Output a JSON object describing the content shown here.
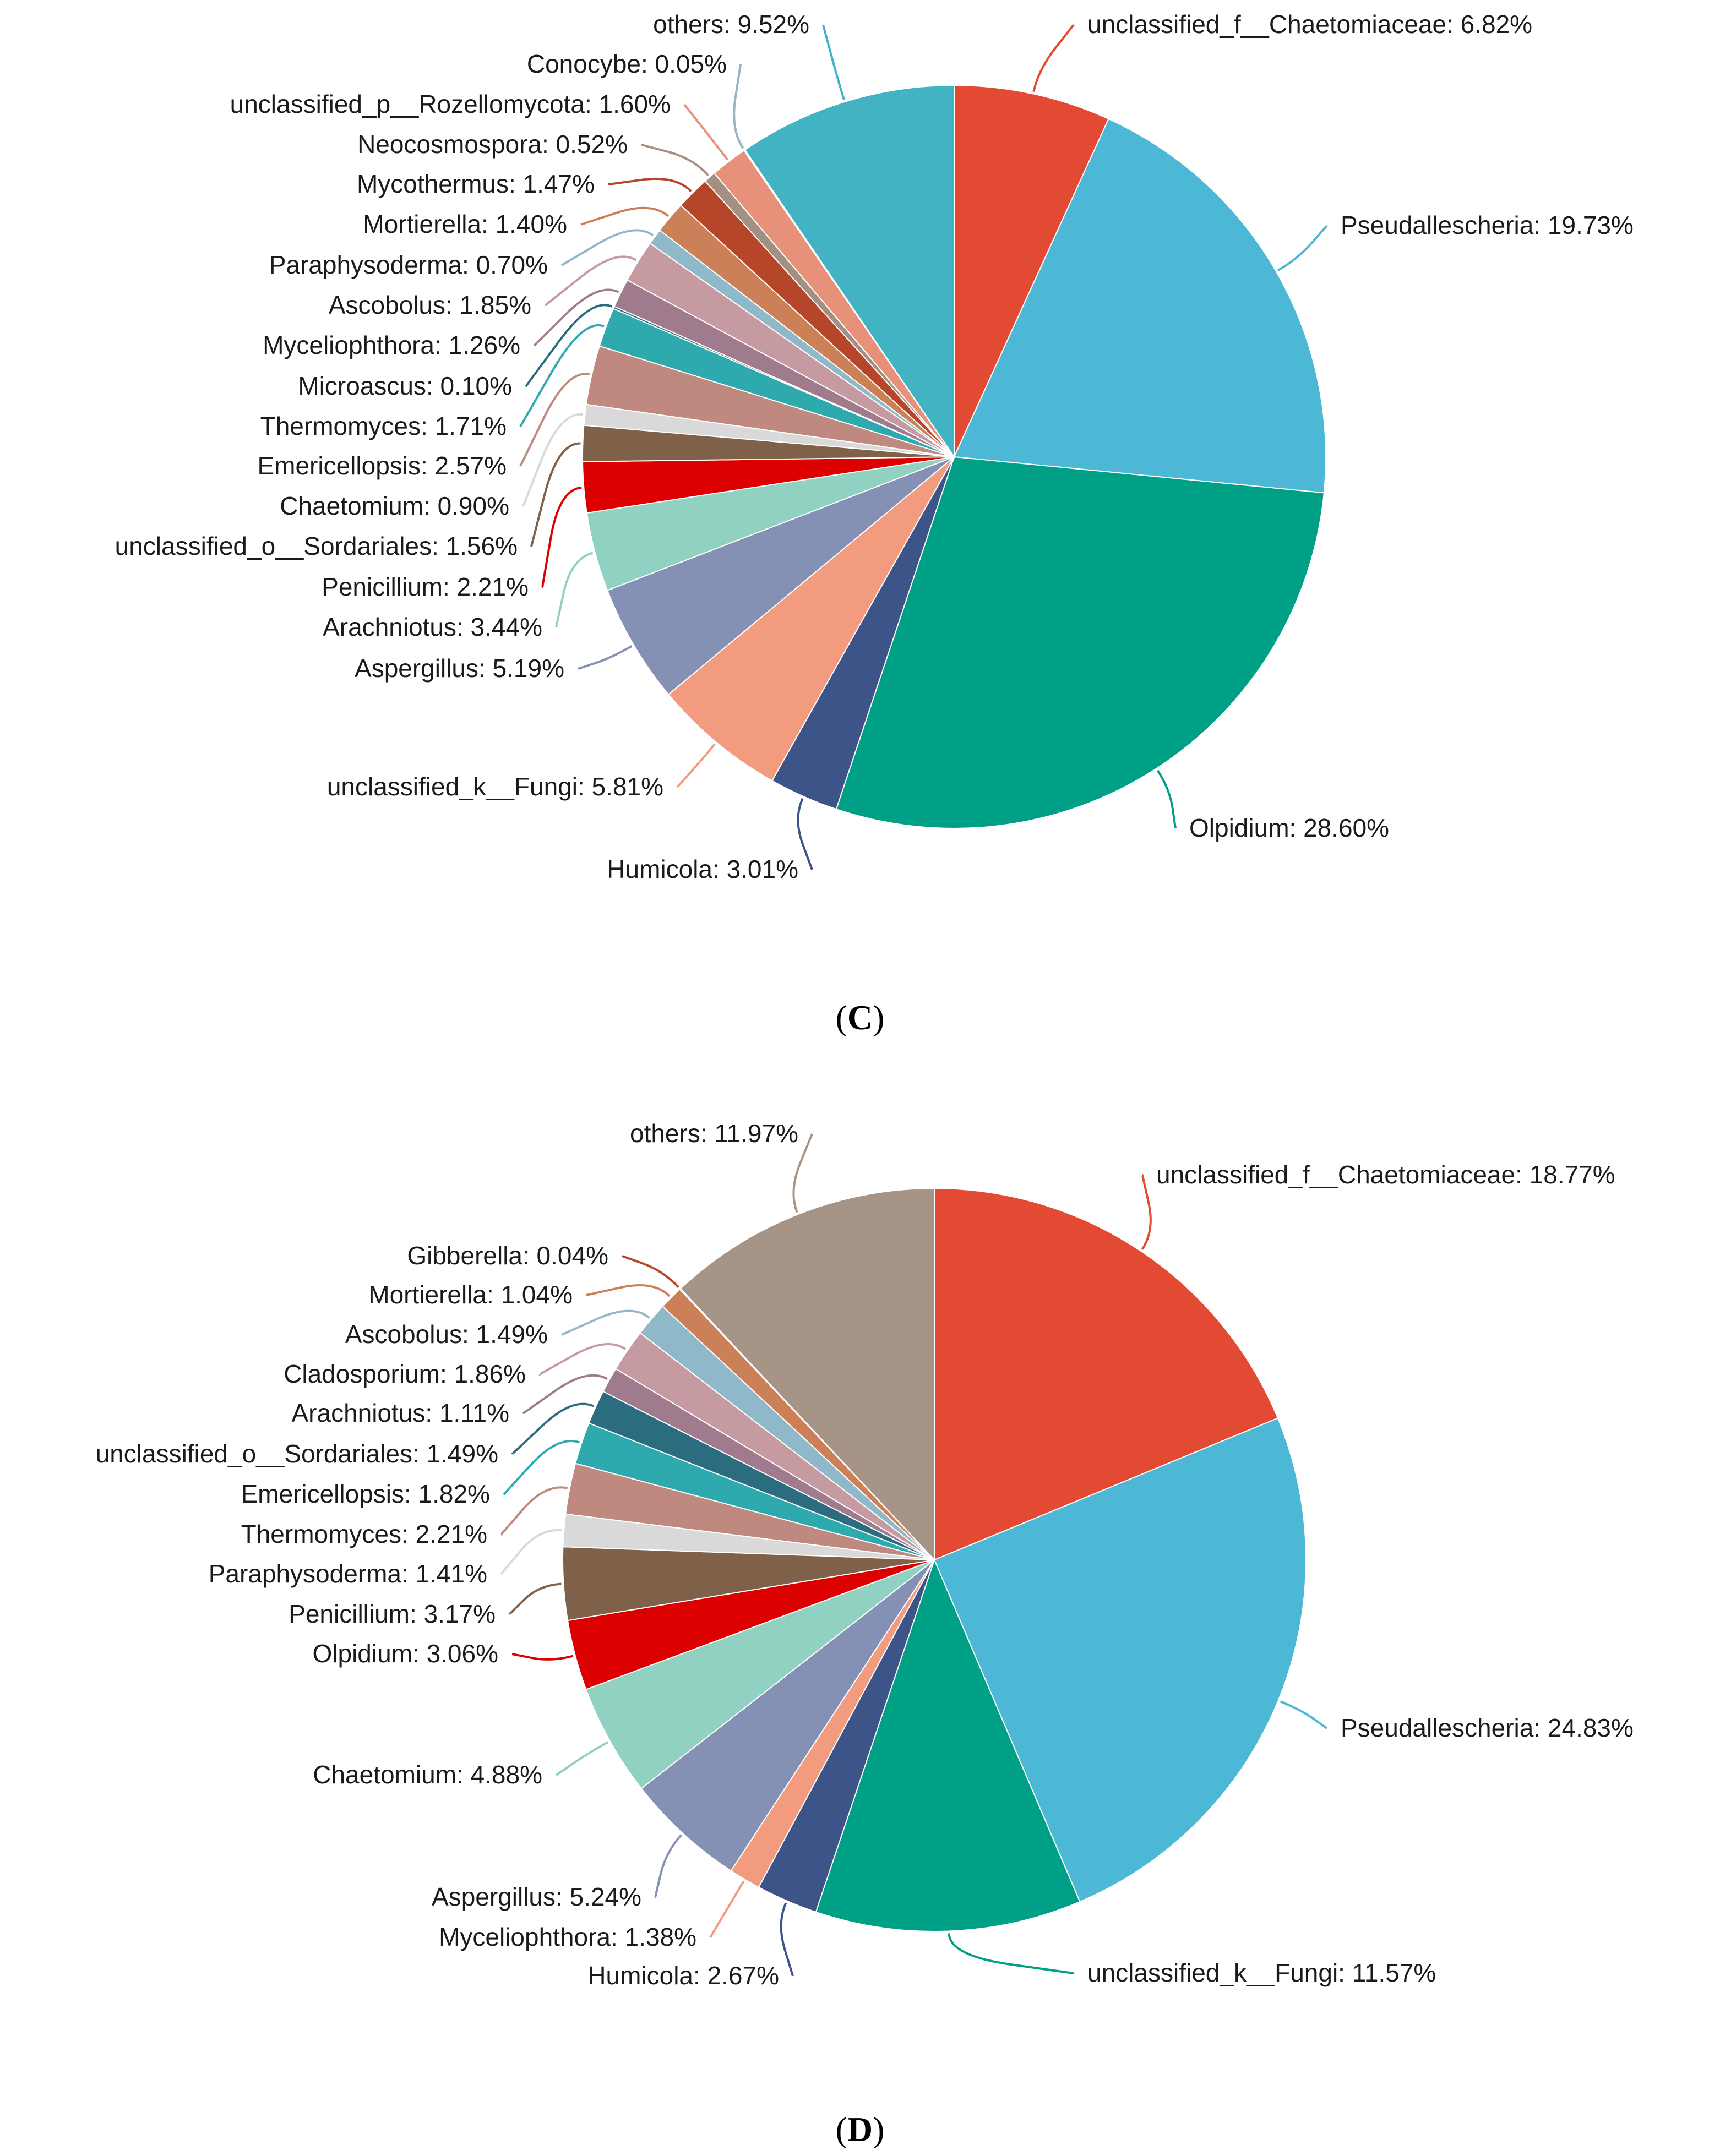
{
  "chart_data": [
    {
      "type": "pie",
      "panel": "C",
      "start_angle_deg": 0,
      "direction": "clockwise",
      "slices": [
        {
          "name": "unclassified_f__Chaetomiaceae",
          "value": 6.82,
          "label": "unclassified_f__Chaetomiaceae: 6.82%",
          "color": "#e34a33"
        },
        {
          "name": "Pseudallescheria",
          "value": 19.73,
          "label": "Pseudallescheria: 19.73%",
          "color": "#4db8d5"
        },
        {
          "name": "Olpidium",
          "value": 28.6,
          "label": "Olpidium: 28.60%",
          "color": "#00a087"
        },
        {
          "name": "Humicola",
          "value": 3.01,
          "label": "Humicola: 3.01%",
          "color": "#3c5488"
        },
        {
          "name": "unclassified_k__Fungi",
          "value": 5.81,
          "label": "unclassified_k__Fungi: 5.81%",
          "color": "#f39b7f"
        },
        {
          "name": "Aspergillus",
          "value": 5.19,
          "label": "Aspergillus: 5.19%",
          "color": "#8491b4"
        },
        {
          "name": "Arachniotus",
          "value": 3.44,
          "label": "Arachniotus: 3.44%",
          "color": "#91d1c2"
        },
        {
          "name": "Penicillium",
          "value": 2.21,
          "label": "Penicillium: 2.21%",
          "color": "#dc0000"
        },
        {
          "name": "unclassified_o__Sordariales",
          "value": 1.56,
          "label": "unclassified_o__Sordariales: 1.56%",
          "color": "#7e6148"
        },
        {
          "name": "Chaetomium",
          "value": 0.9,
          "label": "Chaetomium: 0.90%",
          "color": "#d9d9d9"
        },
        {
          "name": "Emericellopsis",
          "value": 2.57,
          "label": "Emericellopsis: 2.57%",
          "color": "#c0897f"
        },
        {
          "name": "Thermomyces",
          "value": 1.71,
          "label": "Thermomyces: 1.71%",
          "color": "#2eaaae"
        },
        {
          "name": "Microascus",
          "value": 0.1,
          "label": "Microascus: 0.10%",
          "color": "#2b6d7e"
        },
        {
          "name": "Myceliophthora",
          "value": 1.26,
          "label": "Myceliophthora: 1.26%",
          "color": "#a07a8d"
        },
        {
          "name": "Ascobolus",
          "value": 1.85,
          "label": "Ascobolus: 1.85%",
          "color": "#c59aa0"
        },
        {
          "name": "Paraphysoderma",
          "value": 0.7,
          "label": "Paraphysoderma: 0.70%",
          "color": "#8fb8c8"
        },
        {
          "name": "Mortierella",
          "value": 1.4,
          "label": "Mortierella: 1.40%",
          "color": "#cc8057"
        },
        {
          "name": "Mycothermus",
          "value": 1.47,
          "label": "Mycothermus: 1.47%",
          "color": "#b5462a"
        },
        {
          "name": "Neocosmospora",
          "value": 0.52,
          "label": "Neocosmospora: 0.52%",
          "color": "#a39082"
        },
        {
          "name": "unclassified_p__Rozellomycota",
          "value": 1.6,
          "label": "unclassified_p__Rozellomycota: 1.60%",
          "color": "#e8917a"
        },
        {
          "name": "Conocybe",
          "value": 0.05,
          "label": "Conocybe: 0.05%",
          "color": "#9ab5bd"
        },
        {
          "name": "others",
          "value": 9.52,
          "label": "others: 9.52%",
          "color": "#42b3c3"
        }
      ]
    },
    {
      "type": "pie",
      "panel": "D",
      "start_angle_deg": 0,
      "direction": "clockwise",
      "slices": [
        {
          "name": "unclassified_f__Chaetomiaceae",
          "value": 18.77,
          "label": "unclassified_f__Chaetomiaceae: 18.77%",
          "color": "#e34a33"
        },
        {
          "name": "Pseudallescheria",
          "value": 24.83,
          "label": "Pseudallescheria: 24.83%",
          "color": "#4db8d5"
        },
        {
          "name": "unclassified_k__Fungi",
          "value": 11.57,
          "label": "unclassified_k__Fungi: 11.57%",
          "color": "#00a087"
        },
        {
          "name": "Humicola",
          "value": 2.67,
          "label": "Humicola: 2.67%",
          "color": "#3c5488"
        },
        {
          "name": "Myceliophthora",
          "value": 1.38,
          "label": "Myceliophthora: 1.38%",
          "color": "#f39b7f"
        },
        {
          "name": "Aspergillus",
          "value": 5.24,
          "label": "Aspergillus: 5.24%",
          "color": "#8491b4"
        },
        {
          "name": "Chaetomium",
          "value": 4.88,
          "label": "Chaetomium: 4.88%",
          "color": "#91d1c2"
        },
        {
          "name": "Olpidium",
          "value": 3.06,
          "label": "Olpidium: 3.06%",
          "color": "#dc0000"
        },
        {
          "name": "Penicillium",
          "value": 3.17,
          "label": "Penicillium: 3.17%",
          "color": "#7e6148"
        },
        {
          "name": "Paraphysoderma",
          "value": 1.41,
          "label": "Paraphysoderma: 1.41%",
          "color": "#d9d9d9"
        },
        {
          "name": "Thermomyces",
          "value": 2.21,
          "label": "Thermomyces: 2.21%",
          "color": "#c0897f"
        },
        {
          "name": "Emericellopsis",
          "value": 1.82,
          "label": "Emericellopsis: 1.82%",
          "color": "#2eaaae"
        },
        {
          "name": "unclassified_o__Sordariales",
          "value": 1.49,
          "label": "unclassified_o__Sordariales: 1.49%",
          "color": "#2b6d7e"
        },
        {
          "name": "Arachniotus",
          "value": 1.11,
          "label": "Arachniotus: 1.11%",
          "color": "#a07a8d"
        },
        {
          "name": "Cladosporium",
          "value": 1.86,
          "label": "Cladosporium: 1.86%",
          "color": "#c59aa0"
        },
        {
          "name": "Ascobolus",
          "value": 1.49,
          "label": "Ascobolus: 1.49%",
          "color": "#8fb8c8"
        },
        {
          "name": "Mortierella",
          "value": 1.04,
          "label": "Mortierella: 1.04%",
          "color": "#cc8057"
        },
        {
          "name": "Gibberella",
          "value": 0.04,
          "label": "Gibberella: 0.04%",
          "color": "#b5462a"
        },
        {
          "name": "others",
          "value": 11.97,
          "label": "others: 11.97%",
          "color": "#a69587"
        }
      ]
    }
  ],
  "captions": {
    "c": {
      "open": "(",
      "letter": "C",
      "close": ")"
    },
    "d": {
      "open": "(",
      "letter": "D",
      "close": ")"
    }
  }
}
